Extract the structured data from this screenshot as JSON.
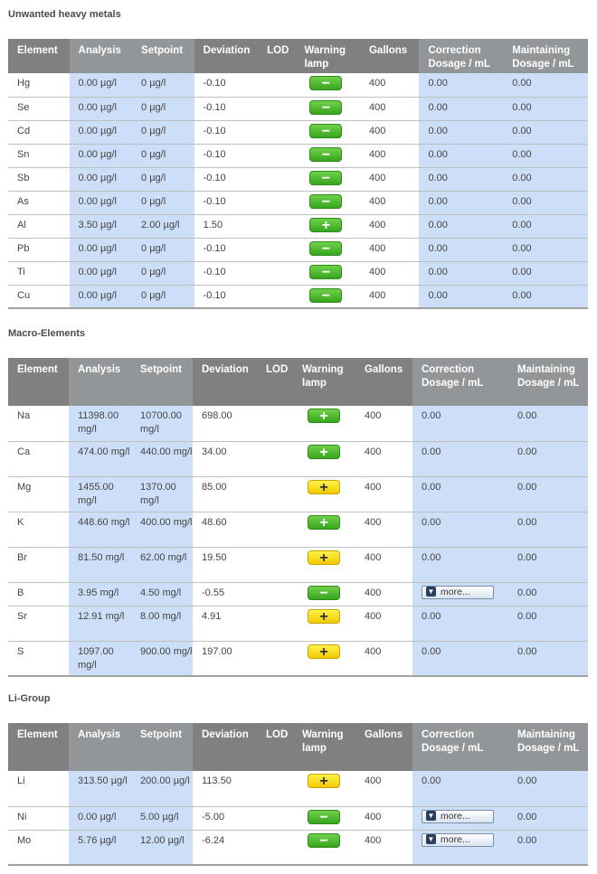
{
  "colors": {
    "header_bg": "#808080",
    "highlight_col": "#cddff8",
    "lamp_green": "#3fae22",
    "lamp_yellow": "#f5d200"
  },
  "columns": [
    "Element",
    "Analysis",
    "Setpoint",
    "Deviation",
    "LOD",
    "Warning lamp",
    "Gallons",
    "Correction Dosage / mL",
    "Maintaining Dosage / mL"
  ],
  "sections": [
    {
      "title": "Unwanted heavy metals",
      "rows": [
        {
          "element": "Hg",
          "analysis": "0.00 µg/l",
          "setpoint": "0 µg/l",
          "deviation": "-0.10",
          "lod": "",
          "lamp": "minus",
          "lamp_color": "green",
          "gallons": "400",
          "correction": "0.00",
          "maintaining": "0.00"
        },
        {
          "element": "Se",
          "analysis": "0.00 µg/l",
          "setpoint": "0 µg/l",
          "deviation": "-0.10",
          "lod": "",
          "lamp": "minus",
          "lamp_color": "green",
          "gallons": "400",
          "correction": "0.00",
          "maintaining": "0.00"
        },
        {
          "element": "Cd",
          "analysis": "0.00 µg/l",
          "setpoint": "0 µg/l",
          "deviation": "-0.10",
          "lod": "",
          "lamp": "minus",
          "lamp_color": "green",
          "gallons": "400",
          "correction": "0.00",
          "maintaining": "0.00"
        },
        {
          "element": "Sn",
          "analysis": "0.00 µg/l",
          "setpoint": "0 µg/l",
          "deviation": "-0.10",
          "lod": "",
          "lamp": "minus",
          "lamp_color": "green",
          "gallons": "400",
          "correction": "0.00",
          "maintaining": "0.00"
        },
        {
          "element": "Sb",
          "analysis": "0.00 µg/l",
          "setpoint": "0 µg/l",
          "deviation": "-0.10",
          "lod": "",
          "lamp": "minus",
          "lamp_color": "green",
          "gallons": "400",
          "correction": "0.00",
          "maintaining": "0.00"
        },
        {
          "element": "As",
          "analysis": "0.00 µg/l",
          "setpoint": "0 µg/l",
          "deviation": "-0.10",
          "lod": "",
          "lamp": "minus",
          "lamp_color": "green",
          "gallons": "400",
          "correction": "0.00",
          "maintaining": "0.00"
        },
        {
          "element": "Al",
          "analysis": "3.50 µg/l",
          "setpoint": "2.00 µg/l",
          "deviation": "1.50",
          "lod": "",
          "lamp": "plus",
          "lamp_color": "green",
          "gallons": "400",
          "correction": "0.00",
          "maintaining": "0.00"
        },
        {
          "element": "Pb",
          "analysis": "0.00 µg/l",
          "setpoint": "0 µg/l",
          "deviation": "-0.10",
          "lod": "",
          "lamp": "minus",
          "lamp_color": "green",
          "gallons": "400",
          "correction": "0.00",
          "maintaining": "0.00"
        },
        {
          "element": "Ti",
          "analysis": "0.00 µg/l",
          "setpoint": "0 µg/l",
          "deviation": "-0.10",
          "lod": "",
          "lamp": "minus",
          "lamp_color": "green",
          "gallons": "400",
          "correction": "0.00",
          "maintaining": "0.00"
        },
        {
          "element": "Cu",
          "analysis": "0.00 µg/l",
          "setpoint": "0 µg/l",
          "deviation": "-0.10",
          "lod": "",
          "lamp": "minus",
          "lamp_color": "green",
          "gallons": "400",
          "correction": "0.00",
          "maintaining": "0.00"
        }
      ]
    },
    {
      "title": "Macro-Elements",
      "rows": [
        {
          "element": "Na",
          "analysis": "11398.00 mg/l",
          "setpoint": "10700.00 mg/l",
          "deviation": "698.00",
          "lod": "",
          "lamp": "plus",
          "lamp_color": "green",
          "gallons": "400",
          "correction": "0.00",
          "maintaining": "0.00"
        },
        {
          "element": "Ca",
          "analysis": "474.00 mg/l",
          "setpoint": "440.00 mg/l",
          "deviation": "34.00",
          "lod": "",
          "lamp": "plus",
          "lamp_color": "green",
          "gallons": "400",
          "correction": "0.00",
          "maintaining": "0.00"
        },
        {
          "element": "Mg",
          "analysis": "1455.00 mg/l",
          "setpoint": "1370.00 mg/l",
          "deviation": "85.00",
          "lod": "",
          "lamp": "plus",
          "lamp_color": "yellow",
          "gallons": "400",
          "correction": "0.00",
          "maintaining": "0.00"
        },
        {
          "element": "K",
          "analysis": "448.60 mg/l",
          "setpoint": "400.00 mg/l",
          "deviation": "48.60",
          "lod": "",
          "lamp": "plus",
          "lamp_color": "green",
          "gallons": "400",
          "correction": "0.00",
          "maintaining": "0.00"
        },
        {
          "element": "Br",
          "analysis": "81.50 mg/l",
          "setpoint": "62.00 mg/l",
          "deviation": "19.50",
          "lod": "",
          "lamp": "plus",
          "lamp_color": "yellow",
          "gallons": "400",
          "correction": "0.00",
          "maintaining": "0.00"
        },
        {
          "element": "B",
          "analysis": "3.95 mg/l",
          "setpoint": "4.50 mg/l",
          "deviation": "-0.55",
          "lod": "",
          "lamp": "minus",
          "lamp_color": "green",
          "gallons": "400",
          "correction": "more...",
          "maintaining": "0.00"
        },
        {
          "element": "Sr",
          "analysis": "12.91 mg/l",
          "setpoint": "8.00 mg/l",
          "deviation": "4.91",
          "lod": "",
          "lamp": "plus",
          "lamp_color": "yellow",
          "gallons": "400",
          "correction": "0.00",
          "maintaining": "0.00"
        },
        {
          "element": "S",
          "analysis": "1097.00 mg/l",
          "setpoint": "900.00 mg/l",
          "deviation": "197.00",
          "lod": "",
          "lamp": "plus",
          "lamp_color": "yellow",
          "gallons": "400",
          "correction": "0.00",
          "maintaining": "0.00"
        }
      ]
    },
    {
      "title": "Li-Group",
      "rows": [
        {
          "element": "Li",
          "analysis": "313.50 µg/l",
          "setpoint": "200.00 µg/l",
          "deviation": "113.50",
          "lod": "",
          "lamp": "plus",
          "lamp_color": "yellow",
          "gallons": "400",
          "correction": "0.00",
          "maintaining": "0.00"
        },
        {
          "element": "Ni",
          "analysis": "0.00 µg/l",
          "setpoint": "5.00 µg/l",
          "deviation": "-5.00",
          "lod": "",
          "lamp": "minus",
          "lamp_color": "green",
          "gallons": "400",
          "correction": "more...",
          "maintaining": "0.00"
        },
        {
          "element": "Mo",
          "analysis": "5.76 µg/l",
          "setpoint": "12.00 µg/l",
          "deviation": "-6.24",
          "lod": "",
          "lamp": "minus",
          "lamp_color": "green",
          "gallons": "400",
          "correction": "more...",
          "maintaining": "0.00"
        }
      ]
    }
  ]
}
